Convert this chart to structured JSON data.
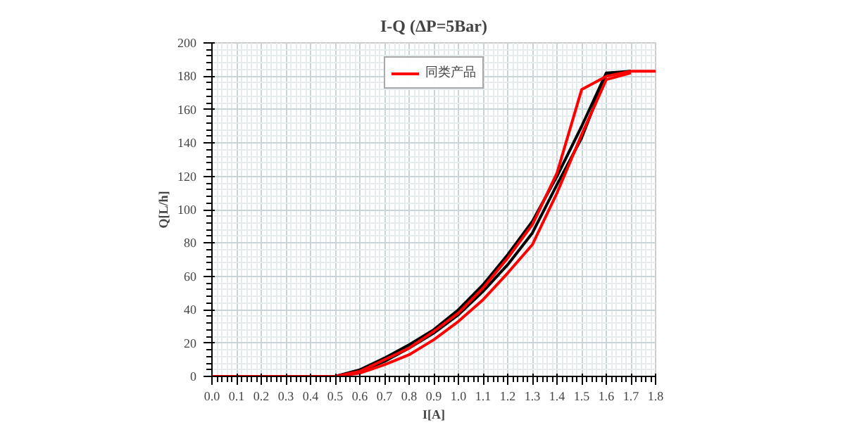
{
  "chart_data": {
    "type": "line",
    "title": "I-Q (ΔP=5Bar)",
    "xlabel": "I[A]",
    "ylabel": "Q[L/h]",
    "x": [
      0.0,
      0.1,
      0.2,
      0.3,
      0.4,
      0.5,
      0.6,
      0.7,
      0.8,
      0.9,
      1.0,
      1.1,
      1.2,
      1.3,
      1.4,
      1.5,
      1.6,
      1.7,
      1.8
    ],
    "series": [
      {
        "color": "#000000",
        "values": [
          null,
          null,
          null,
          null,
          null,
          0,
          4,
          11,
          19,
          28,
          40,
          55,
          73,
          93,
          120,
          150,
          182,
          183,
          null
        ]
      },
      {
        "color": "#000000",
        "values": [
          null,
          null,
          null,
          null,
          null,
          0,
          3,
          9,
          17,
          26,
          37,
          51,
          67,
          86,
          115,
          143,
          181,
          183,
          null
        ]
      },
      {
        "color": "#ff0000",
        "values": [
          null,
          null,
          null,
          null,
          null,
          0,
          2,
          7,
          13,
          22,
          33,
          46,
          62,
          79,
          110,
          145,
          178,
          182,
          null
        ]
      },
      {
        "name": "同类产品",
        "color": "#ff0000",
        "values": [
          0,
          0,
          0,
          0,
          0,
          0,
          3,
          10,
          17,
          27,
          38,
          53,
          71,
          91,
          122,
          172,
          180,
          183,
          183
        ]
      }
    ],
    "xlim": [
      0,
      1.8
    ],
    "ylim": [
      0,
      200
    ],
    "xticks": [
      {
        "value": 0,
        "label": "0.0"
      },
      0.1,
      0.2,
      0.3,
      0.4,
      0.5,
      0.6,
      0.7,
      0.8,
      0.9,
      {
        "value": 1,
        "label": "1.0"
      },
      1.1,
      1.2,
      1.3,
      1.4,
      1.5,
      1.6,
      1.7,
      1.8
    ],
    "yticks": [
      0,
      20,
      40,
      60,
      80,
      100,
      120,
      140,
      160,
      180,
      200
    ],
    "grid": true,
    "legend": "top",
    "marker": "none",
    "line_style": "solid"
  }
}
